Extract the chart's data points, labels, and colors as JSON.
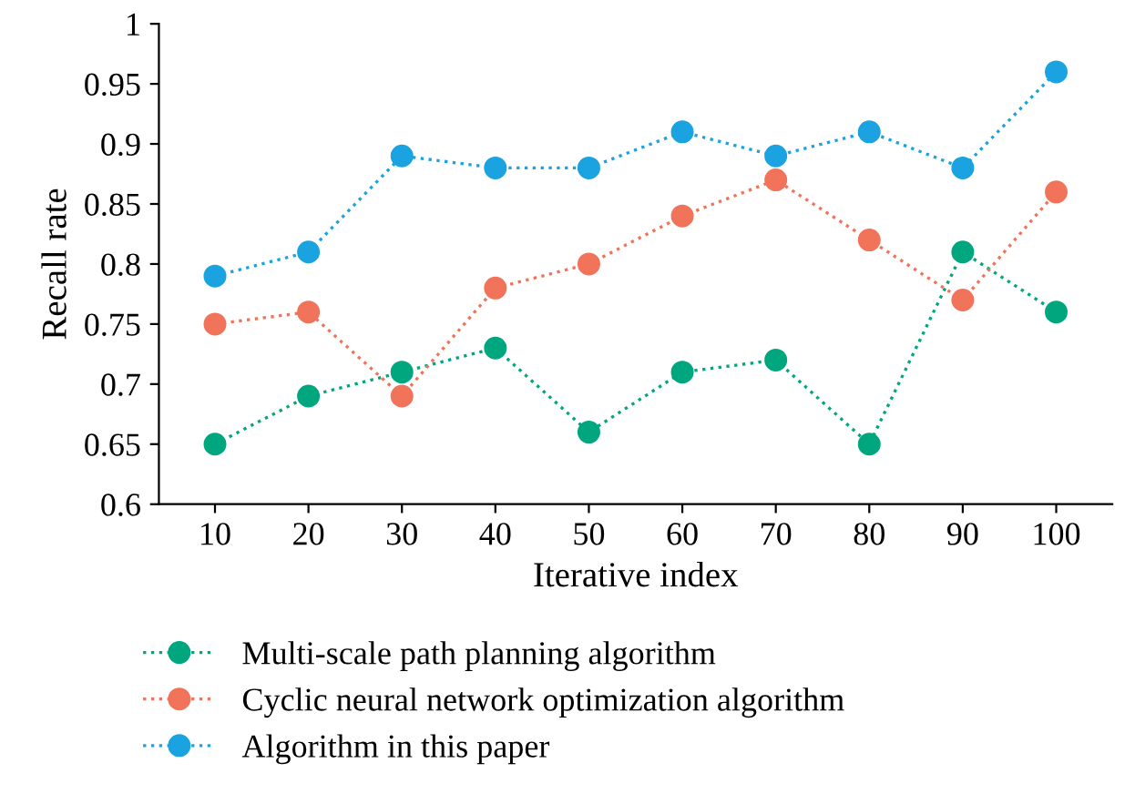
{
  "chart_data": {
    "type": "line",
    "xlabel": "Iterative index",
    "ylabel": "Recall rate",
    "categories": [
      "10",
      "20",
      "30",
      "40",
      "50",
      "60",
      "70",
      "80",
      "90",
      "100"
    ],
    "series": [
      {
        "name": "Multi-scale path planning algorithm",
        "color": "#00a67e",
        "values": [
          0.65,
          0.69,
          0.71,
          0.73,
          0.66,
          0.71,
          0.72,
          0.65,
          0.81,
          0.76
        ]
      },
      {
        "name": "Cyclic neural network optimization algorithm",
        "color": "#f0735a",
        "values": [
          0.75,
          0.76,
          0.69,
          0.78,
          0.8,
          0.84,
          0.87,
          0.82,
          0.77,
          0.86
        ]
      },
      {
        "name": "Algorithm in this paper",
        "color": "#1aa3e0",
        "values": [
          0.79,
          0.81,
          0.89,
          0.88,
          0.88,
          0.91,
          0.89,
          0.91,
          0.88,
          0.96
        ]
      }
    ],
    "ylim": [
      0.6,
      1
    ],
    "yticks": [
      0.6,
      0.65,
      0.7,
      0.75,
      0.8,
      0.85,
      0.9,
      0.95,
      1
    ],
    "grid": false,
    "legend": "bottom",
    "marker": "circle",
    "line_style": "dotted"
  }
}
